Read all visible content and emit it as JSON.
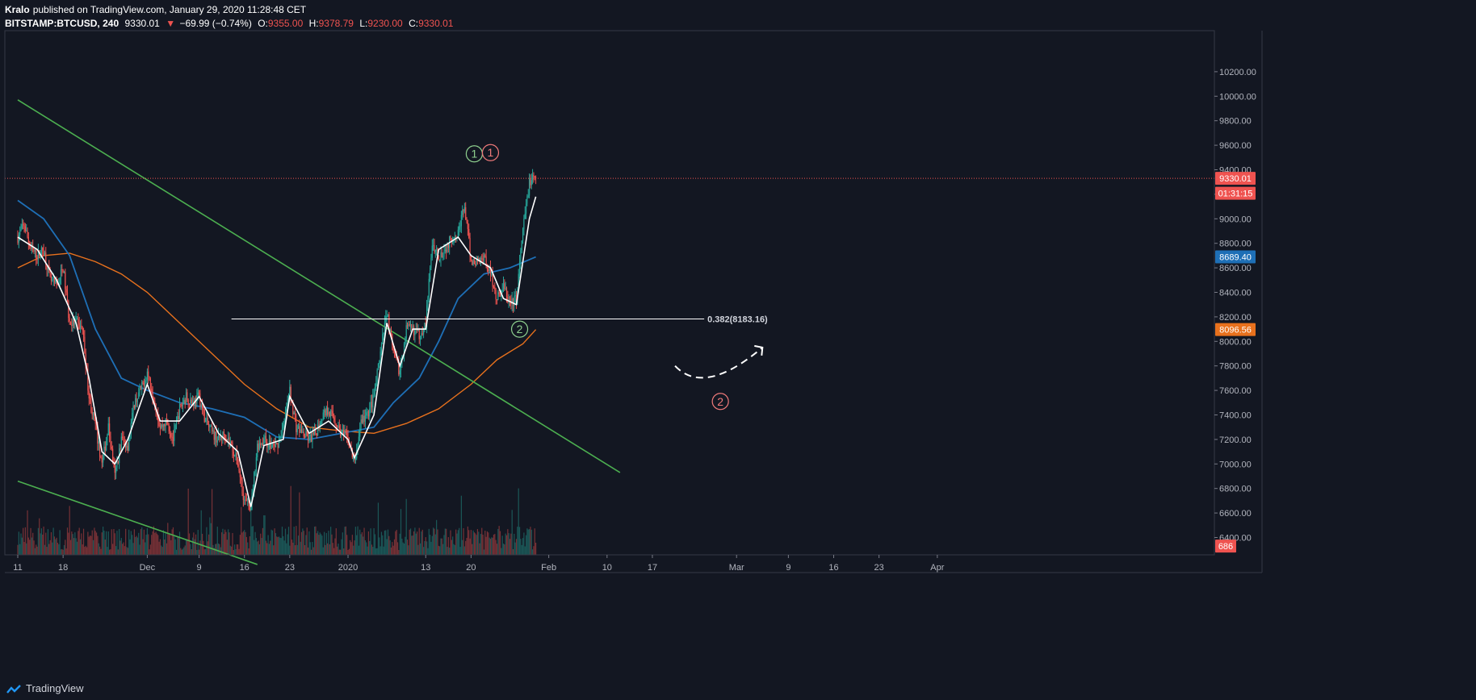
{
  "header": {
    "author": "Kralo",
    "published_text": "published on TradingView.com, January 29, 2020 11:28:48 CET",
    "symbol": "BITSTAMP:BTCUSD, 240",
    "last": "9330.01",
    "change_arrow": "▼",
    "change": "−69.99 (−0.74%)",
    "o_label": "O:",
    "o_value": "9355.00",
    "h_label": "H:",
    "h_value": "9378.79",
    "l_label": "L:",
    "l_value": "9230.00",
    "c_label": "C:",
    "c_value": "9330.01"
  },
  "footer": {
    "brand": "TradingView",
    "brand_icon": "tradingview-logo-icon"
  },
  "colors": {
    "background": "#131722",
    "up": "#26a69a",
    "down": "#ef5350",
    "ma_white": "#ffffff",
    "ma_blue": "#1e6fb6",
    "ma_orange": "#e8711d",
    "trendline": "#4caf50",
    "label_green": "#8fd18f",
    "label_red": "#f07a7a"
  },
  "chart_data": {
    "type": "candlestick",
    "symbol": "BITSTAMP:BTCUSD",
    "interval": "240",
    "ylim": [
      6200,
      10300
    ],
    "y_ticks": [
      6400,
      6600,
      6800,
      7000,
      7200,
      7400,
      7600,
      7800,
      8000,
      8200,
      8400,
      8600,
      8800,
      9000,
      9200,
      9400,
      9600,
      9800,
      10000,
      10200
    ],
    "y_tick_labels": [
      "6400.00",
      "6600.00",
      "6800.00",
      "7000.00",
      "7200.00",
      "7400.00",
      "7600.00",
      "7800.00",
      "8000.00",
      "8200.00",
      "8400.00",
      "8600.00",
      "8800.00",
      "9000.00",
      "9200.00",
      "9400.00",
      "9600.00",
      "9800.00",
      "10000.00",
      "10200.00"
    ],
    "x_start_day": "2019-11-11",
    "x_end_day": "2020-04-14",
    "x_tick_labels": [
      {
        "label": "11",
        "day": 0
      },
      {
        "label": "18",
        "day": 7
      },
      {
        "label": "Dec",
        "day": 20
      },
      {
        "label": "9",
        "day": 28
      },
      {
        "label": "16",
        "day": 35
      },
      {
        "label": "23",
        "day": 42
      },
      {
        "label": "2020",
        "day": 51
      },
      {
        "label": "13",
        "day": 63
      },
      {
        "label": "20",
        "day": 70
      },
      {
        "label": "Feb",
        "day": 82
      },
      {
        "label": "10",
        "day": 91
      },
      {
        "label": "17",
        "day": 98
      },
      {
        "label": "Mar",
        "day": 111
      },
      {
        "label": "9",
        "day": 119
      },
      {
        "label": "16",
        "day": 126
      },
      {
        "label": "23",
        "day": 133
      },
      {
        "label": "Apr",
        "day": 142
      }
    ],
    "price_anchors": [
      {
        "day": 0,
        "price": 8850
      },
      {
        "day": 1,
        "price": 8950
      },
      {
        "day": 2,
        "price": 8750
      },
      {
        "day": 3,
        "price": 8700
      },
      {
        "day": 4,
        "price": 8750
      },
      {
        "day": 5,
        "price": 8500
      },
      {
        "day": 6,
        "price": 8450
      },
      {
        "day": 7,
        "price": 8600
      },
      {
        "day": 8,
        "price": 8150
      },
      {
        "day": 9,
        "price": 8150
      },
      {
        "day": 10,
        "price": 8100
      },
      {
        "day": 11,
        "price": 7550
      },
      {
        "day": 12,
        "price": 7300
      },
      {
        "day": 13,
        "price": 7000
      },
      {
        "day": 14,
        "price": 7300
      },
      {
        "day": 15,
        "price": 6900
      },
      {
        "day": 16,
        "price": 7200
      },
      {
        "day": 17,
        "price": 7150
      },
      {
        "day": 18,
        "price": 7500
      },
      {
        "day": 19,
        "price": 7600
      },
      {
        "day": 20,
        "price": 7750
      },
      {
        "day": 21,
        "price": 7550
      },
      {
        "day": 22,
        "price": 7300
      },
      {
        "day": 23,
        "price": 7350
      },
      {
        "day": 24,
        "price": 7200
      },
      {
        "day": 25,
        "price": 7450
      },
      {
        "day": 26,
        "price": 7550
      },
      {
        "day": 27,
        "price": 7500
      },
      {
        "day": 28,
        "price": 7550
      },
      {
        "day": 29,
        "price": 7350
      },
      {
        "day": 30,
        "price": 7250
      },
      {
        "day": 31,
        "price": 7200
      },
      {
        "day": 32,
        "price": 7250
      },
      {
        "day": 33,
        "price": 7150
      },
      {
        "day": 34,
        "price": 7000
      },
      {
        "day": 35,
        "price": 6700
      },
      {
        "day": 36,
        "price": 6650
      },
      {
        "day": 37,
        "price": 7150
      },
      {
        "day": 38,
        "price": 7200
      },
      {
        "day": 39,
        "price": 7150
      },
      {
        "day": 40,
        "price": 7150
      },
      {
        "day": 41,
        "price": 7300
      },
      {
        "day": 42,
        "price": 7600
      },
      {
        "day": 43,
        "price": 7300
      },
      {
        "day": 44,
        "price": 7250
      },
      {
        "day": 45,
        "price": 7200
      },
      {
        "day": 46,
        "price": 7250
      },
      {
        "day": 47,
        "price": 7400
      },
      {
        "day": 48,
        "price": 7450
      },
      {
        "day": 49,
        "price": 7350
      },
      {
        "day": 50,
        "price": 7250
      },
      {
        "day": 51,
        "price": 7200
      },
      {
        "day": 52,
        "price": 7000
      },
      {
        "day": 53,
        "price": 7350
      },
      {
        "day": 54,
        "price": 7400
      },
      {
        "day": 55,
        "price": 7550
      },
      {
        "day": 56,
        "price": 7900
      },
      {
        "day": 57,
        "price": 8250
      },
      {
        "day": 58,
        "price": 7900
      },
      {
        "day": 59,
        "price": 7750
      },
      {
        "day": 60,
        "price": 8100
      },
      {
        "day": 61,
        "price": 8100
      },
      {
        "day": 62,
        "price": 8050
      },
      {
        "day": 63,
        "price": 8150
      },
      {
        "day": 64,
        "price": 8800
      },
      {
        "day": 65,
        "price": 8700
      },
      {
        "day": 66,
        "price": 8750
      },
      {
        "day": 67,
        "price": 8850
      },
      {
        "day": 68,
        "price": 8900
      },
      {
        "day": 69,
        "price": 9100
      },
      {
        "day": 70,
        "price": 8650
      },
      {
        "day": 71,
        "price": 8650
      },
      {
        "day": 72,
        "price": 8700
      },
      {
        "day": 73,
        "price": 8550
      },
      {
        "day": 74,
        "price": 8350
      },
      {
        "day": 75,
        "price": 8450
      },
      {
        "day": 76,
        "price": 8300
      },
      {
        "day": 77,
        "price": 8350
      },
      {
        "day": 78,
        "price": 8900
      },
      {
        "day": 79,
        "price": 9300
      },
      {
        "day": 80,
        "price": 9330
      }
    ],
    "ma_white": [
      {
        "day": 0,
        "price": 8850
      },
      {
        "day": 3,
        "price": 8750
      },
      {
        "day": 6,
        "price": 8500
      },
      {
        "day": 9,
        "price": 8150
      },
      {
        "day": 11,
        "price": 7700
      },
      {
        "day": 13,
        "price": 7100
      },
      {
        "day": 15,
        "price": 7000
      },
      {
        "day": 17,
        "price": 7200
      },
      {
        "day": 20,
        "price": 7650
      },
      {
        "day": 22,
        "price": 7350
      },
      {
        "day": 25,
        "price": 7350
      },
      {
        "day": 28,
        "price": 7550
      },
      {
        "day": 31,
        "price": 7250
      },
      {
        "day": 34,
        "price": 7100
      },
      {
        "day": 36,
        "price": 6650
      },
      {
        "day": 38,
        "price": 7150
      },
      {
        "day": 41,
        "price": 7200
      },
      {
        "day": 42,
        "price": 7550
      },
      {
        "day": 45,
        "price": 7250
      },
      {
        "day": 48,
        "price": 7350
      },
      {
        "day": 51,
        "price": 7200
      },
      {
        "day": 52,
        "price": 7050
      },
      {
        "day": 55,
        "price": 7400
      },
      {
        "day": 57,
        "price": 8150
      },
      {
        "day": 59,
        "price": 7800
      },
      {
        "day": 61,
        "price": 8100
      },
      {
        "day": 63,
        "price": 8100
      },
      {
        "day": 65,
        "price": 8750
      },
      {
        "day": 68,
        "price": 8850
      },
      {
        "day": 70,
        "price": 8700
      },
      {
        "day": 73,
        "price": 8600
      },
      {
        "day": 75,
        "price": 8350
      },
      {
        "day": 77,
        "price": 8300
      },
      {
        "day": 79,
        "price": 9000
      },
      {
        "day": 80,
        "price": 9180
      }
    ],
    "ma_blue": [
      {
        "day": 0,
        "price": 9150
      },
      {
        "day": 4,
        "price": 9000
      },
      {
        "day": 8,
        "price": 8700
      },
      {
        "day": 12,
        "price": 8100
      },
      {
        "day": 16,
        "price": 7700
      },
      {
        "day": 20,
        "price": 7600
      },
      {
        "day": 25,
        "price": 7500
      },
      {
        "day": 30,
        "price": 7450
      },
      {
        "day": 35,
        "price": 7380
      },
      {
        "day": 40,
        "price": 7220
      },
      {
        "day": 45,
        "price": 7200
      },
      {
        "day": 50,
        "price": 7250
      },
      {
        "day": 55,
        "price": 7300
      },
      {
        "day": 58,
        "price": 7500
      },
      {
        "day": 62,
        "price": 7700
      },
      {
        "day": 65,
        "price": 8000
      },
      {
        "day": 68,
        "price": 8350
      },
      {
        "day": 72,
        "price": 8550
      },
      {
        "day": 76,
        "price": 8600
      },
      {
        "day": 80,
        "price": 8689
      }
    ],
    "ma_orange": [
      {
        "day": 0,
        "price": 8600
      },
      {
        "day": 4,
        "price": 8700
      },
      {
        "day": 8,
        "price": 8720
      },
      {
        "day": 12,
        "price": 8650
      },
      {
        "day": 16,
        "price": 8550
      },
      {
        "day": 20,
        "price": 8400
      },
      {
        "day": 25,
        "price": 8150
      },
      {
        "day": 30,
        "price": 7900
      },
      {
        "day": 35,
        "price": 7650
      },
      {
        "day": 40,
        "price": 7450
      },
      {
        "day": 45,
        "price": 7300
      },
      {
        "day": 50,
        "price": 7270
      },
      {
        "day": 55,
        "price": 7250
      },
      {
        "day": 60,
        "price": 7330
      },
      {
        "day": 65,
        "price": 7450
      },
      {
        "day": 70,
        "price": 7650
      },
      {
        "day": 74,
        "price": 7850
      },
      {
        "day": 78,
        "price": 7980
      },
      {
        "day": 80,
        "price": 8096
      }
    ],
    "trendlines": [
      {
        "from": {
          "day": 0,
          "price": 9970
        },
        "to": {
          "day": 93,
          "price": 6930
        }
      },
      {
        "from": {
          "day": 0,
          "price": 6860
        },
        "to": {
          "day": 37,
          "price": 6180
        }
      }
    ],
    "fib_level": {
      "label": "0.382(8183.16)",
      "price": 8183.16,
      "from_day": 33,
      "to_day": 106
    },
    "wave_labels": [
      {
        "text": "1",
        "day": 70.5,
        "price": 9530,
        "color": "label_green"
      },
      {
        "text": "1",
        "day": 73,
        "price": 9540,
        "color": "label_red"
      },
      {
        "text": "2",
        "day": 77.5,
        "price": 8100,
        "color": "label_green"
      },
      {
        "text": "2",
        "day": 108.5,
        "price": 7510,
        "color": "label_red"
      }
    ],
    "projection_arrow": [
      {
        "day": 101.5,
        "price": 7800
      },
      {
        "day": 106,
        "price": 7680
      },
      {
        "day": 115,
        "price": 7950
      }
    ],
    "price_tags": [
      {
        "label": "9330.01",
        "price": 9330.01,
        "color": "#ef5350"
      },
      {
        "label": "01:31:15",
        "price": 9208,
        "color": "#ef5350"
      },
      {
        "label": "8689.40",
        "price": 8689.4,
        "color": "#1e6fb6"
      },
      {
        "label": "8096.56",
        "price": 8096.56,
        "color": "#e8711d"
      },
      {
        "label": "686",
        "price": 6330,
        "color": "#ef5350"
      }
    ],
    "last_price_line": 9330.01
  }
}
